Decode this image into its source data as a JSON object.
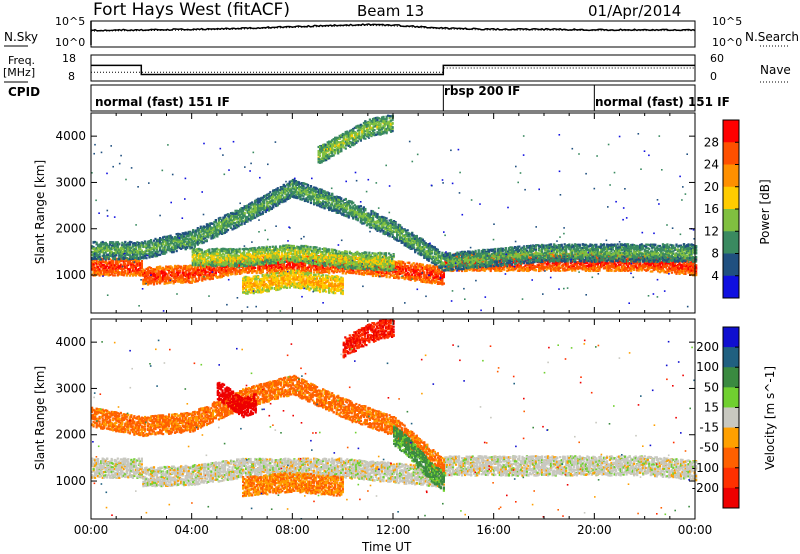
{
  "header": {
    "station": "Fort Hays West (fitACF)",
    "beam": "Beam 13",
    "date": "01/Apr/2014"
  },
  "left_labels": {
    "nsky": "N.Sky",
    "freq": "Freq.",
    "mhz": "[MHz]",
    "cpid": "CPID"
  },
  "right_labels": {
    "nsearch": "N.Search",
    "nave": "Nave"
  },
  "noise_axis": {
    "top": "10^5",
    "bottom": "10^0",
    "top_right": "10^5",
    "bottom_right": "10^0"
  },
  "freq_axis": {
    "top": "18",
    "bottom": "8"
  },
  "nave_axis": {
    "top": "60",
    "bottom": "0"
  },
  "cpid_segments": [
    {
      "label": "normal (fast) 151 IF",
      "start_hour": 0
    },
    {
      "label": "rbsp 200 IF",
      "start_hour": 14
    },
    {
      "label": "normal (fast) 151 IF",
      "start_hour": 20
    }
  ],
  "power_colorbar": {
    "title": "Power [dB]",
    "ticks": [
      "28",
      "24",
      "20",
      "16",
      "12",
      "8",
      "4"
    ],
    "colors": [
      "#ff0000",
      "#ff5000",
      "#ff9000",
      "#ffcc00",
      "#80c040",
      "#3a8a60",
      "#205080",
      "#1010e0"
    ]
  },
  "velocity_colorbar": {
    "title": "Velocity [m s^-1]",
    "ticks": [
      "200",
      "100",
      "50",
      "15",
      "-15",
      "-50",
      "-100",
      "-200"
    ],
    "colors": [
      "#1010d0",
      "#206080",
      "#3a8a40",
      "#70d030",
      "#c8c8c0",
      "#ffa000",
      "#ff6000",
      "#ff3000",
      "#ee0000"
    ]
  },
  "xaxis": {
    "label": "Time UT",
    "ticks": [
      "00:00",
      "04:00",
      "08:00",
      "12:00",
      "16:00",
      "20:00",
      "00:00"
    ]
  },
  "chart_data": [
    {
      "type": "line",
      "title": "N.Sky / N.Search",
      "x": [
        0,
        2,
        4,
        6,
        8,
        10,
        11,
        12,
        14,
        16,
        18,
        20,
        22,
        24
      ],
      "series": [
        {
          "values": [
            3.2,
            3.3,
            3.4,
            3.6,
            3.9,
            4.2,
            4.3,
            4.2,
            3.6,
            3.4,
            3.4,
            3.3,
            3.3,
            3.3
          ]
        }
      ],
      "ylim": [
        0,
        5
      ]
    },
    {
      "type": "line",
      "title": "Freq. [MHz] / Nave",
      "x": [
        0,
        2,
        2,
        14,
        14,
        20,
        20,
        24
      ],
      "series": [
        {
          "name": "Freq.",
          "values": [
            14,
            14,
            10.5,
            10.5,
            14,
            14,
            14,
            14
          ]
        },
        {
          "name": "Nave",
          "values": [
            20,
            20,
            20,
            20,
            30,
            30,
            30,
            30
          ]
        }
      ]
    },
    {
      "type": "heatmap",
      "title": "Power [dB]",
      "xlabel": "Time UT",
      "ylabel": "Slant Range [km]",
      "xlim": [
        0,
        24
      ],
      "ylim": [
        180,
        4500
      ],
      "yticks": [
        1000,
        2000,
        3000,
        4000
      ],
      "bands": [
        {
          "name": "ground scatter",
          "t": [
            0,
            2,
            2,
            4,
            6,
            8,
            10,
            12,
            14,
            14,
            18,
            22,
            24
          ],
          "r": [
            1200,
            1200,
            1000,
            1050,
            1250,
            1250,
            1250,
            1150,
            1000,
            1300,
            1300,
            1300,
            1200
          ],
          "db": 26
        },
        {
          "name": "upper band",
          "t": [
            0,
            2,
            4,
            6,
            8,
            10,
            12,
            14,
            18,
            22,
            24
          ],
          "r": [
            1550,
            1550,
            1800,
            2300,
            2900,
            2500,
            2000,
            1300,
            1500,
            1500,
            1500
          ],
          "db": 10
        },
        {
          "name": "inner band",
          "t": [
            4,
            6,
            8,
            10,
            12
          ],
          "r": [
            1400,
            1400,
            1500,
            1350,
            1300
          ],
          "db": 14
        },
        {
          "name": "low band",
          "t": [
            6,
            7,
            8,
            9,
            10
          ],
          "r": [
            800,
            850,
            950,
            850,
            800
          ],
          "db": 18
        },
        {
          "name": "high patch",
          "t": [
            9,
            10,
            11,
            12
          ],
          "r": [
            3600,
            3900,
            4200,
            4300
          ],
          "db": 12
        }
      ]
    },
    {
      "type": "heatmap",
      "title": "Velocity [m s^-1]",
      "xlabel": "Time UT",
      "ylabel": "Slant Range [km]",
      "xlim": [
        0,
        24
      ],
      "ylim": [
        180,
        4500
      ],
      "yticks": [
        1000,
        2000,
        3000,
        4000
      ],
      "bands": [
        {
          "name": "ground scatter",
          "t": [
            0,
            2,
            2,
            4,
            6,
            8,
            10,
            12,
            14,
            14,
            18,
            22,
            24
          ],
          "r": [
            1300,
            1300,
            1100,
            1150,
            1300,
            1300,
            1300,
            1200,
            1100,
            1350,
            1350,
            1350,
            1250
          ],
          "v": 0
        },
        {
          "name": "flow band",
          "t": [
            0,
            2,
            4,
            6,
            8,
            10,
            12,
            14
          ],
          "r": [
            2400,
            2200,
            2300,
            2800,
            3100,
            2600,
            2200,
            1300
          ],
          "v": -60
        },
        {
          "name": "low band",
          "t": [
            6,
            7,
            8,
            9,
            10
          ],
          "r": [
            900,
            950,
            1000,
            950,
            900
          ],
          "v": -50
        },
        {
          "name": "red patch",
          "t": [
            5,
            5.5,
            6,
            6.5
          ],
          "r": [
            3000,
            2800,
            2600,
            2700
          ],
          "v": -250
        },
        {
          "name": "upper patch",
          "t": [
            10,
            10.5,
            11,
            11.5,
            12
          ],
          "r": [
            3900,
            4050,
            4200,
            4300,
            4350
          ],
          "v": -200
        },
        {
          "name": "descending",
          "t": [
            12,
            12.5,
            13,
            13.5,
            14
          ],
          "r": [
            2000,
            1800,
            1500,
            1200,
            1000
          ],
          "v": 60
        }
      ]
    }
  ]
}
